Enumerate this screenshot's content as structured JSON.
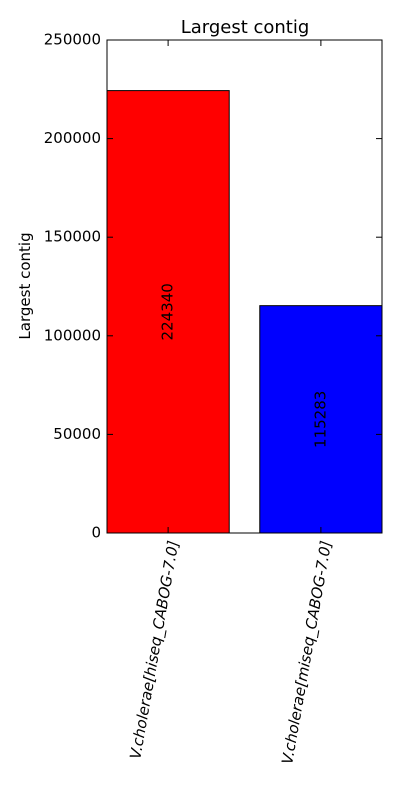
{
  "chart_data": {
    "type": "bar",
    "title": "Largest contig",
    "xlabel": "",
    "ylabel": "Largest contig",
    "categories": [
      "V.cholerae[hiseq_CABOG-7.0]",
      "V.cholerae[miseq_CABOG-7.0]"
    ],
    "values": [
      224340,
      115283
    ],
    "value_labels": [
      "224340",
      "115283"
    ],
    "bar_colors": [
      "#ff0000",
      "#0000ff"
    ],
    "ylim": [
      0,
      250000
    ],
    "yticks": [
      0,
      50000,
      100000,
      150000,
      200000,
      250000
    ],
    "ytick_labels": [
      "0",
      "50000",
      "100000",
      "150000",
      "200000",
      "250000"
    ],
    "grid": false,
    "legend": "none"
  }
}
